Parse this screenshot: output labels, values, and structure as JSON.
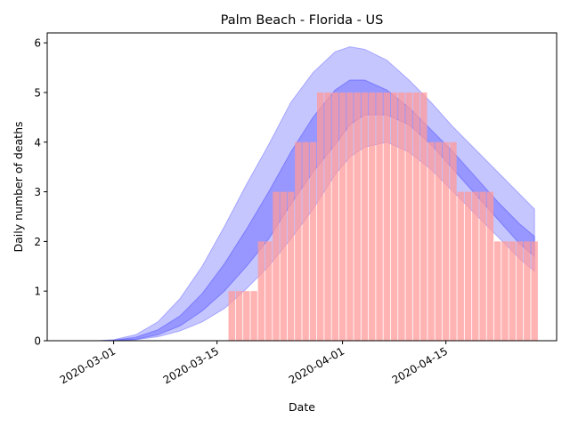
{
  "chart_data": {
    "type": "bar",
    "title": "Palm Beach - Florida - US",
    "xlabel": "Date",
    "ylabel": "Daily number of deaths",
    "xlim": [
      "2020-02-21",
      "2020-04-30"
    ],
    "ylim": [
      0,
      6.2
    ],
    "grid": false,
    "legend": "none",
    "x_ticks": [
      "2020-03-01",
      "2020-03-15",
      "2020-04-01",
      "2020-04-15"
    ],
    "y_ticks": [
      0,
      1,
      2,
      3,
      4,
      5,
      6
    ],
    "colors": {
      "bars": "#ff9999",
      "outer_band": "#7777ff",
      "inner_band": "#5555ff",
      "text": "#000000"
    },
    "bars": {
      "name": "",
      "dates": [
        "2020-03-17",
        "2020-03-18",
        "2020-03-19",
        "2020-03-20",
        "2020-03-21",
        "2020-03-22",
        "2020-03-23",
        "2020-03-24",
        "2020-03-25",
        "2020-03-26",
        "2020-03-27",
        "2020-03-28",
        "2020-03-29",
        "2020-03-30",
        "2020-03-31",
        "2020-04-01",
        "2020-04-02",
        "2020-04-03",
        "2020-04-04",
        "2020-04-05",
        "2020-04-06",
        "2020-04-07",
        "2020-04-08",
        "2020-04-09",
        "2020-04-10",
        "2020-04-11",
        "2020-04-12",
        "2020-04-13",
        "2020-04-14",
        "2020-04-15",
        "2020-04-16",
        "2020-04-17",
        "2020-04-18",
        "2020-04-19",
        "2020-04-20",
        "2020-04-21",
        "2020-04-22",
        "2020-04-23",
        "2020-04-24",
        "2020-04-25",
        "2020-04-26",
        "2020-04-27"
      ],
      "values": [
        1,
        1,
        1,
        1,
        2,
        2,
        3,
        3,
        3,
        4,
        4,
        4,
        5,
        5,
        5,
        5,
        5,
        5,
        5,
        5,
        5,
        5,
        5,
        5,
        5,
        5,
        5,
        4,
        4,
        4,
        4,
        3,
        3,
        3,
        3,
        3,
        2,
        2,
        2,
        2,
        2,
        2
      ]
    },
    "bands": [
      {
        "name": "",
        "x": [
          "2020-02-25",
          "2020-02-28",
          "2020-03-01",
          "2020-03-04",
          "2020-03-07",
          "2020-03-10",
          "2020-03-13",
          "2020-03-16",
          "2020-03-19",
          "2020-03-22",
          "2020-03-25",
          "2020-03-28",
          "2020-03-31",
          "2020-04-02",
          "2020-04-04",
          "2020-04-07",
          "2020-04-10",
          "2020-04-13",
          "2020-04-16",
          "2020-04-19",
          "2020-04-22",
          "2020-04-25",
          "2020-04-27"
        ],
        "upper": [
          0.0,
          0.0,
          0.02,
          0.12,
          0.38,
          0.85,
          1.5,
          2.3,
          3.15,
          3.95,
          4.8,
          5.4,
          5.82,
          5.92,
          5.87,
          5.65,
          5.25,
          4.8,
          4.3,
          3.85,
          3.4,
          2.95,
          2.65
        ],
        "lower": [
          0.0,
          0.0,
          0.0,
          0.02,
          0.08,
          0.2,
          0.38,
          0.65,
          1.05,
          1.5,
          2.05,
          2.65,
          3.35,
          3.7,
          3.9,
          4.0,
          3.8,
          3.45,
          3.0,
          2.55,
          2.1,
          1.65,
          1.4
        ]
      },
      {
        "name": "",
        "x": [
          "2020-02-25",
          "2020-02-28",
          "2020-03-01",
          "2020-03-04",
          "2020-03-07",
          "2020-03-10",
          "2020-03-13",
          "2020-03-16",
          "2020-03-19",
          "2020-03-22",
          "2020-03-25",
          "2020-03-28",
          "2020-03-31",
          "2020-04-02",
          "2020-04-04",
          "2020-04-07",
          "2020-04-10",
          "2020-04-13",
          "2020-04-16",
          "2020-04-19",
          "2020-04-22",
          "2020-04-25",
          "2020-04-27"
        ],
        "upper": [
          0.0,
          0.0,
          0.01,
          0.07,
          0.22,
          0.5,
          0.95,
          1.55,
          2.25,
          3.0,
          3.8,
          4.5,
          5.05,
          5.25,
          5.25,
          5.05,
          4.7,
          4.25,
          3.8,
          3.3,
          2.8,
          2.35,
          2.1
        ],
        "lower": [
          0.0,
          0.0,
          0.0,
          0.03,
          0.12,
          0.3,
          0.6,
          1.0,
          1.5,
          2.05,
          2.75,
          3.4,
          3.95,
          4.35,
          4.55,
          4.55,
          4.35,
          3.95,
          3.45,
          2.95,
          2.45,
          1.95,
          1.7
        ]
      }
    ]
  }
}
